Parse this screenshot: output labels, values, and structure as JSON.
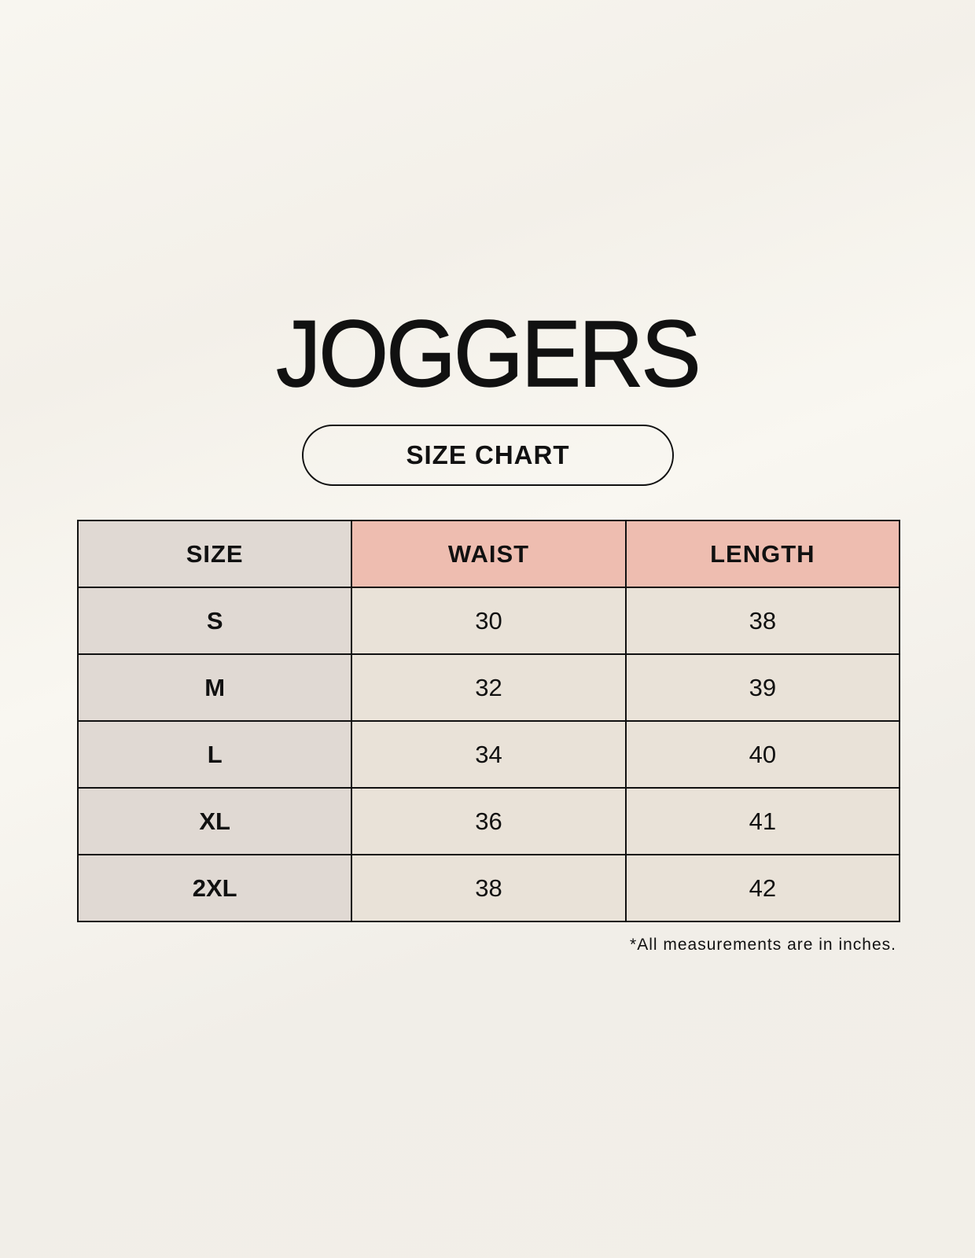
{
  "title": "JOGGERS",
  "subtitle": "SIZE CHART",
  "table": {
    "headers": [
      "SIZE",
      "WAIST",
      "LENGTH"
    ],
    "rows": [
      [
        "S",
        "30",
        "38"
      ],
      [
        "M",
        "32",
        "39"
      ],
      [
        "L",
        "34",
        "40"
      ],
      [
        "XL",
        "36",
        "41"
      ],
      [
        "2XL",
        "38",
        "42"
      ]
    ]
  },
  "footnote": "*All measurements are in inches.",
  "colors": {
    "size_column": "#e0d9d3",
    "header_accent": "#eebdb0",
    "cell": "#e9e2d8",
    "border": "#111111"
  }
}
